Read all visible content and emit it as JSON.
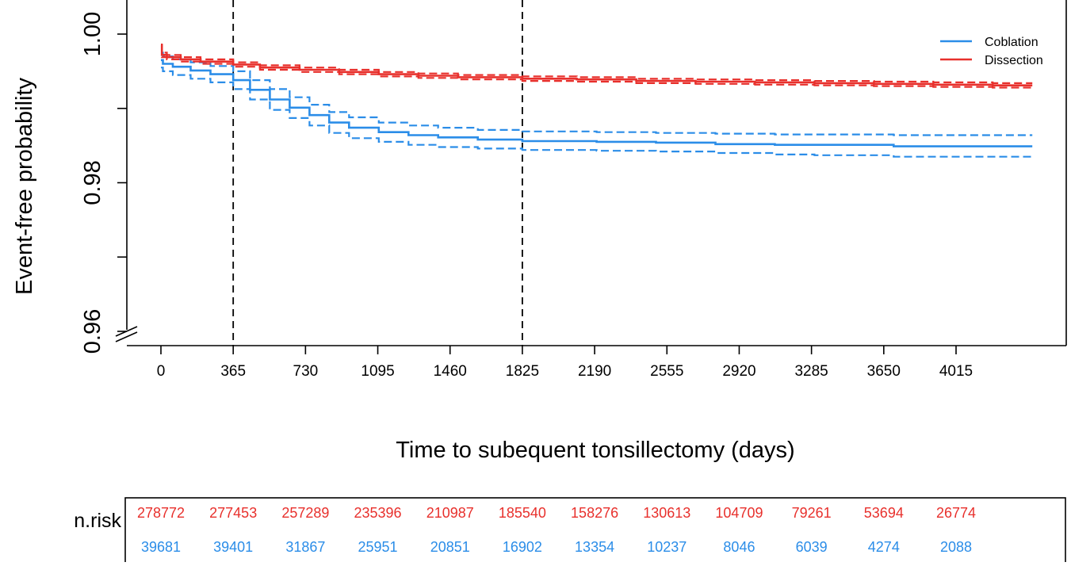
{
  "chart_data": {
    "type": "line",
    "title": "",
    "xlabel": "Time to subequent tonsillectomy (days)",
    "ylabel": "Event-free probability",
    "xlim": [
      -50,
      4700
    ],
    "ylim": [
      0.96,
      1.0
    ],
    "x_ticks": [
      "0",
      "365",
      "730",
      "1095",
      "1460",
      "1825",
      "2190",
      "2555",
      "2920",
      "3285",
      "3650",
      "4015"
    ],
    "y_ticks": [
      "0.96",
      "0.98",
      "1.00"
    ],
    "y_axis_break": true,
    "grid": false,
    "vertical_reference_lines": [
      365,
      1825
    ],
    "legend_position": "top-right",
    "series": [
      {
        "name": "Coblation",
        "color": "#2b8de8",
        "x": [
          0,
          10,
          60,
          150,
          250,
          365,
          450,
          550,
          650,
          750,
          850,
          950,
          1100,
          1250,
          1400,
          1600,
          1825,
          2000,
          2200,
          2500,
          2800,
          3100,
          3300,
          3500,
          3700,
          4000,
          4200,
          4400
        ],
        "y": [
          0.9965,
          0.996,
          0.9956,
          0.9951,
          0.9946,
          0.9938,
          0.9925,
          0.9912,
          0.9901,
          0.9891,
          0.9881,
          0.9874,
          0.9868,
          0.9864,
          0.9861,
          0.9858,
          0.9856,
          0.9856,
          0.9855,
          0.9854,
          0.9852,
          0.9851,
          0.9851,
          0.9851,
          0.9849,
          0.9849,
          0.9849,
          0.9849
        ],
        "lower": [
          0.9955,
          0.995,
          0.9945,
          0.994,
          0.9935,
          0.9926,
          0.9912,
          0.9898,
          0.9887,
          0.9877,
          0.9867,
          0.986,
          0.9855,
          0.9851,
          0.9848,
          0.9846,
          0.9844,
          0.9844,
          0.9843,
          0.9842,
          0.984,
          0.9838,
          0.9837,
          0.9837,
          0.9835,
          0.9835,
          0.9835,
          0.9835
        ],
        "upper": [
          0.9975,
          0.997,
          0.9966,
          0.9962,
          0.9957,
          0.995,
          0.9938,
          0.9926,
          0.9915,
          0.9905,
          0.9895,
          0.9888,
          0.9881,
          0.9877,
          0.9874,
          0.9871,
          0.9869,
          0.9869,
          0.9868,
          0.9867,
          0.9866,
          0.9865,
          0.9865,
          0.9865,
          0.9864,
          0.9864,
          0.9864,
          0.9864
        ]
      },
      {
        "name": "Dissection",
        "color": "#e8302c",
        "x": [
          0,
          5,
          30,
          100,
          200,
          365,
          500,
          700,
          900,
          1100,
          1300,
          1500,
          1825,
          2100,
          2400,
          2700,
          3000,
          3300,
          3600,
          3900,
          4200,
          4400
        ],
        "y": [
          0.9985,
          0.9972,
          0.9969,
          0.9966,
          0.9963,
          0.9959,
          0.9955,
          0.9952,
          0.9949,
          0.9946,
          0.9944,
          0.9942,
          0.994,
          0.9939,
          0.9937,
          0.9936,
          0.9935,
          0.9934,
          0.9933,
          0.9932,
          0.9931,
          0.9931
        ],
        "lower": [
          0.9984,
          0.9969,
          0.9966,
          0.9963,
          0.996,
          0.9956,
          0.9952,
          0.9949,
          0.9946,
          0.9943,
          0.9941,
          0.9939,
          0.9937,
          0.9936,
          0.9934,
          0.9933,
          0.9932,
          0.9931,
          0.993,
          0.9929,
          0.9928,
          0.9928
        ],
        "upper": [
          0.9986,
          0.9975,
          0.9972,
          0.9969,
          0.9966,
          0.9962,
          0.9958,
          0.9955,
          0.9952,
          0.9949,
          0.9947,
          0.9945,
          0.9943,
          0.9942,
          0.994,
          0.9939,
          0.9938,
          0.9937,
          0.9936,
          0.9935,
          0.9934,
          0.9934
        ]
      }
    ],
    "risk_table": {
      "label": "n.risk",
      "times": [
        0,
        365,
        730,
        1095,
        1460,
        1825,
        2190,
        2555,
        2920,
        3285,
        3650,
        4015
      ],
      "rows": [
        {
          "series": "Dissection",
          "values": [
            "278772",
            "277453",
            "257289",
            "235396",
            "210987",
            "185540",
            "158276",
            "130613",
            "104709",
            "79261",
            "53694",
            "26774"
          ]
        },
        {
          "series": "Coblation",
          "values": [
            "39681",
            "39401",
            "31867",
            "25951",
            "20851",
            "16902",
            "13354",
            "10237",
            "8046",
            "6039",
            "4274",
            "2088"
          ]
        }
      ]
    }
  }
}
